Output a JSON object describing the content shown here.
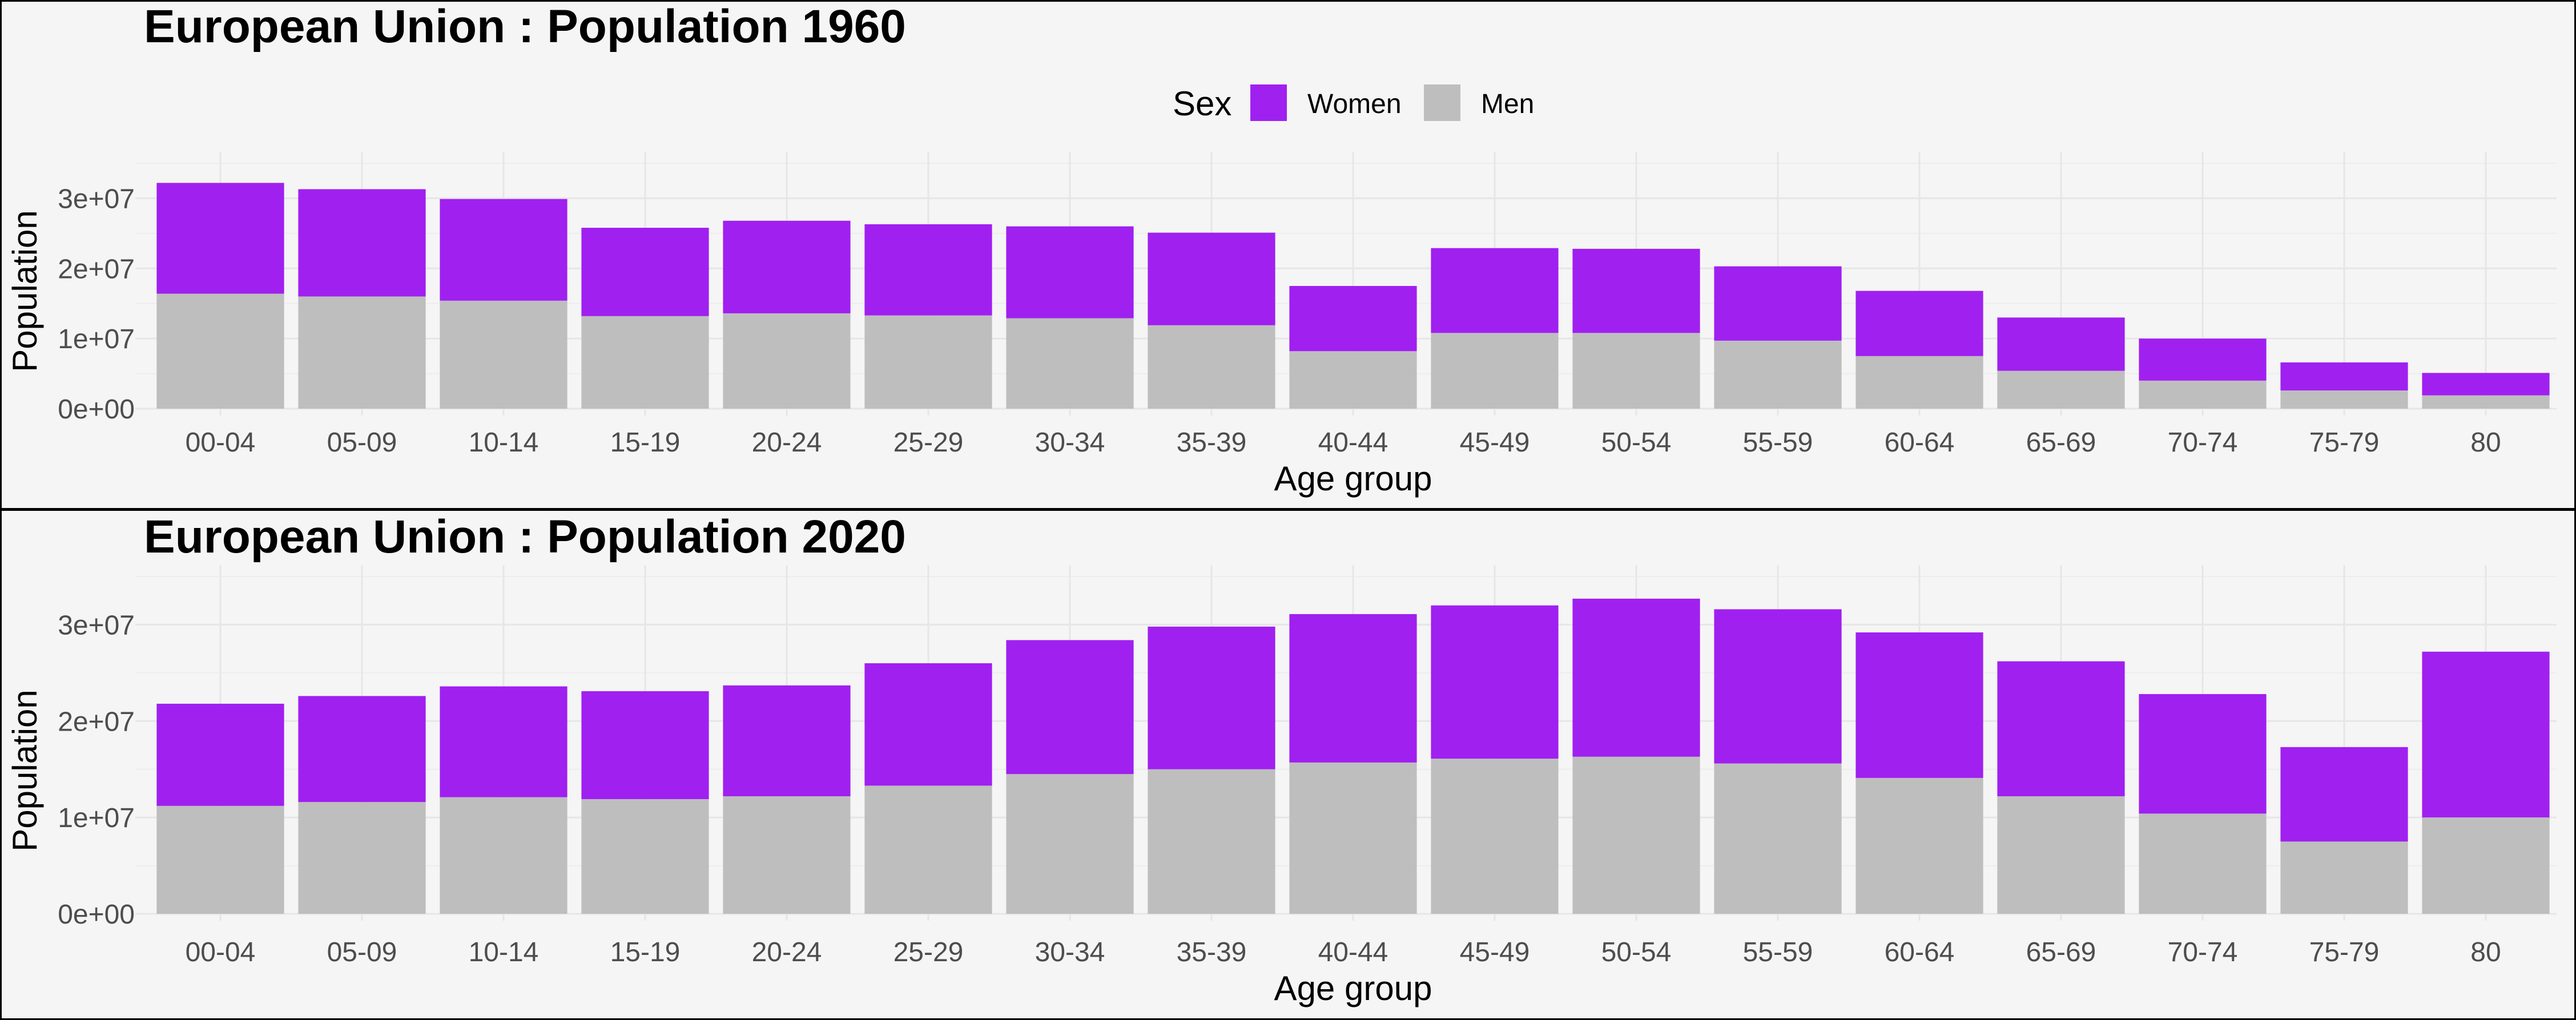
{
  "colors": {
    "women": "#a020f0",
    "men": "#bebebe",
    "background": "#f5f5f5",
    "panel_border": "#000000"
  },
  "legend": {
    "title": "Sex",
    "items": [
      {
        "label": "Women",
        "color": "#a020f0"
      },
      {
        "label": "Men",
        "color": "#bebebe"
      }
    ]
  },
  "chart_data": [
    {
      "type": "bar",
      "stacked": true,
      "title": "European Union : Population 1960",
      "xlabel": "Age group",
      "ylabel": "Population",
      "ylim": [
        0,
        35000000
      ],
      "yticks": [
        0,
        10000000,
        20000000,
        30000000
      ],
      "ytick_labels": [
        "0e+00",
        "1e+07",
        "2e+07",
        "3e+07"
      ],
      "grid": true,
      "legend_position": "top",
      "categories": [
        "00-04",
        "05-09",
        "10-14",
        "15-19",
        "20-24",
        "25-29",
        "30-34",
        "35-39",
        "40-44",
        "45-49",
        "50-54",
        "55-59",
        "60-64",
        "65-69",
        "70-74",
        "75-79",
        "80"
      ],
      "series": [
        {
          "name": "Men",
          "values": [
            16400000,
            16000000,
            15400000,
            13200000,
            13600000,
            13300000,
            12900000,
            11900000,
            8200000,
            10800000,
            10800000,
            9700000,
            7500000,
            5400000,
            4000000,
            2600000,
            1900000
          ]
        },
        {
          "name": "Women",
          "values": [
            15800000,
            15300000,
            14500000,
            12600000,
            13200000,
            13000000,
            13100000,
            13200000,
            9300000,
            12100000,
            12000000,
            10600000,
            9300000,
            7600000,
            6000000,
            4000000,
            3200000
          ]
        }
      ]
    },
    {
      "type": "bar",
      "stacked": true,
      "title": "European Union : Population 2020",
      "xlabel": "Age group",
      "ylabel": "Population",
      "ylim": [
        0,
        35000000
      ],
      "yticks": [
        0,
        10000000,
        20000000,
        30000000
      ],
      "ytick_labels": [
        "0e+00",
        "1e+07",
        "2e+07",
        "3e+07"
      ],
      "grid": true,
      "categories": [
        "00-04",
        "05-09",
        "10-14",
        "15-19",
        "20-24",
        "25-29",
        "30-34",
        "35-39",
        "40-44",
        "45-49",
        "50-54",
        "55-59",
        "60-64",
        "65-69",
        "70-74",
        "75-79",
        "80"
      ],
      "series": [
        {
          "name": "Men",
          "values": [
            11200000,
            11600000,
            12100000,
            11900000,
            12200000,
            13300000,
            14500000,
            15000000,
            15700000,
            16100000,
            16300000,
            15600000,
            14100000,
            12200000,
            10400000,
            7500000,
            10000000
          ]
        },
        {
          "name": "Women",
          "values": [
            10600000,
            11000000,
            11500000,
            11200000,
            11500000,
            12700000,
            13900000,
            14800000,
            15400000,
            15900000,
            16400000,
            16000000,
            15100000,
            14000000,
            12400000,
            9800000,
            17200000
          ]
        }
      ]
    }
  ]
}
